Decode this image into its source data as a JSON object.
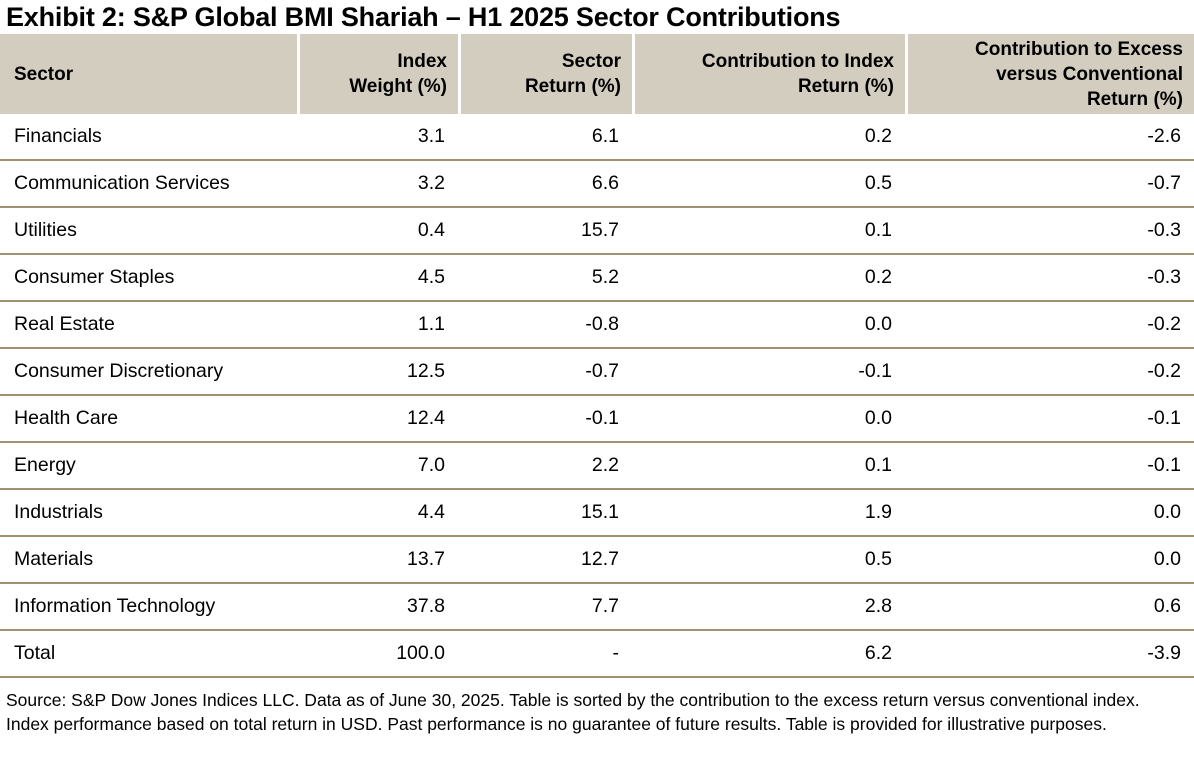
{
  "title": "Exhibit 2: S&P Global BMI Shariah – H1 2025 Sector Contributions",
  "colors": {
    "header_bg": "#d3cdc0",
    "row_divider": "#9e9071",
    "text": "#000000",
    "background": "#ffffff"
  },
  "table": {
    "columns_display": [
      "Sector",
      "Index\nWeight (%)",
      "Sector\nReturn (%)",
      "Contribution to Index\nReturn (%)",
      "Contribution to Excess\nversus Conventional\nReturn (%)"
    ],
    "rows": [
      {
        "sector": "Financials",
        "index_weight": "3.1",
        "sector_return": "6.1",
        "contribution_index": "0.2",
        "contribution_excess": "-2.6"
      },
      {
        "sector": "Communication Services",
        "index_weight": "3.2",
        "sector_return": "6.6",
        "contribution_index": "0.5",
        "contribution_excess": "-0.7"
      },
      {
        "sector": "Utilities",
        "index_weight": "0.4",
        "sector_return": "15.7",
        "contribution_index": "0.1",
        "contribution_excess": "-0.3"
      },
      {
        "sector": "Consumer Staples",
        "index_weight": "4.5",
        "sector_return": "5.2",
        "contribution_index": "0.2",
        "contribution_excess": "-0.3"
      },
      {
        "sector": "Real Estate",
        "index_weight": "1.1",
        "sector_return": "-0.8",
        "contribution_index": "0.0",
        "contribution_excess": "-0.2"
      },
      {
        "sector": "Consumer Discretionary",
        "index_weight": "12.5",
        "sector_return": "-0.7",
        "contribution_index": "-0.1",
        "contribution_excess": "-0.2"
      },
      {
        "sector": "Health Care",
        "index_weight": "12.4",
        "sector_return": "-0.1",
        "contribution_index": "0.0",
        "contribution_excess": "-0.1"
      },
      {
        "sector": "Energy",
        "index_weight": "7.0",
        "sector_return": "2.2",
        "contribution_index": "0.1",
        "contribution_excess": "-0.1"
      },
      {
        "sector": "Industrials",
        "index_weight": "4.4",
        "sector_return": "15.1",
        "contribution_index": "1.9",
        "contribution_excess": "0.0"
      },
      {
        "sector": "Materials",
        "index_weight": "13.7",
        "sector_return": "12.7",
        "contribution_index": "0.5",
        "contribution_excess": "0.0"
      },
      {
        "sector": "Information Technology",
        "index_weight": "37.8",
        "sector_return": "7.7",
        "contribution_index": "2.8",
        "contribution_excess": "0.6"
      },
      {
        "sector": "Total",
        "index_weight": "100.0",
        "sector_return": "-",
        "contribution_index": "6.2",
        "contribution_excess": "-3.9"
      }
    ]
  },
  "source_note": "Source: S&P Dow Jones Indices LLC. Data as of June 30, 2025. Table is sorted by the contribution to the excess return versus conventional index. Index performance based on total return in USD. Past performance is no guarantee of future results. Table is provided for illustrative purposes.",
  "chart_data": {
    "type": "table",
    "title": "Exhibit 2: S&P Global BMI Shariah – H1 2025 Sector Contributions",
    "columns": [
      "Sector",
      "Index Weight (%)",
      "Sector Return (%)",
      "Contribution to Index Return (%)",
      "Contribution to Excess versus Conventional Return (%)"
    ],
    "rows": [
      [
        "Financials",
        3.1,
        6.1,
        0.2,
        -2.6
      ],
      [
        "Communication Services",
        3.2,
        6.6,
        0.5,
        -0.7
      ],
      [
        "Utilities",
        0.4,
        15.7,
        0.1,
        -0.3
      ],
      [
        "Consumer Staples",
        4.5,
        5.2,
        0.2,
        -0.3
      ],
      [
        "Real Estate",
        1.1,
        -0.8,
        0.0,
        -0.2
      ],
      [
        "Consumer Discretionary",
        12.5,
        -0.7,
        -0.1,
        -0.2
      ],
      [
        "Health Care",
        12.4,
        -0.1,
        0.0,
        -0.1
      ],
      [
        "Energy",
        7.0,
        2.2,
        0.1,
        -0.1
      ],
      [
        "Industrials",
        4.4,
        15.1,
        1.9,
        0.0
      ],
      [
        "Materials",
        13.7,
        12.7,
        0.5,
        0.0
      ],
      [
        "Information Technology",
        37.8,
        7.7,
        2.8,
        0.6
      ],
      [
        "Total",
        100.0,
        "-",
        6.2,
        -3.9
      ]
    ],
    "sort_order": "ascending by contribution to excess return versus conventional index",
    "source_note": "Source: S&P Dow Jones Indices LLC. Data as of June 30, 2025. Table is sorted by the contribution to the excess return versus conventional index. Index performance based on total return in USD. Past performance is no guarantee of future results. Table is provided for illustrative purposes."
  }
}
